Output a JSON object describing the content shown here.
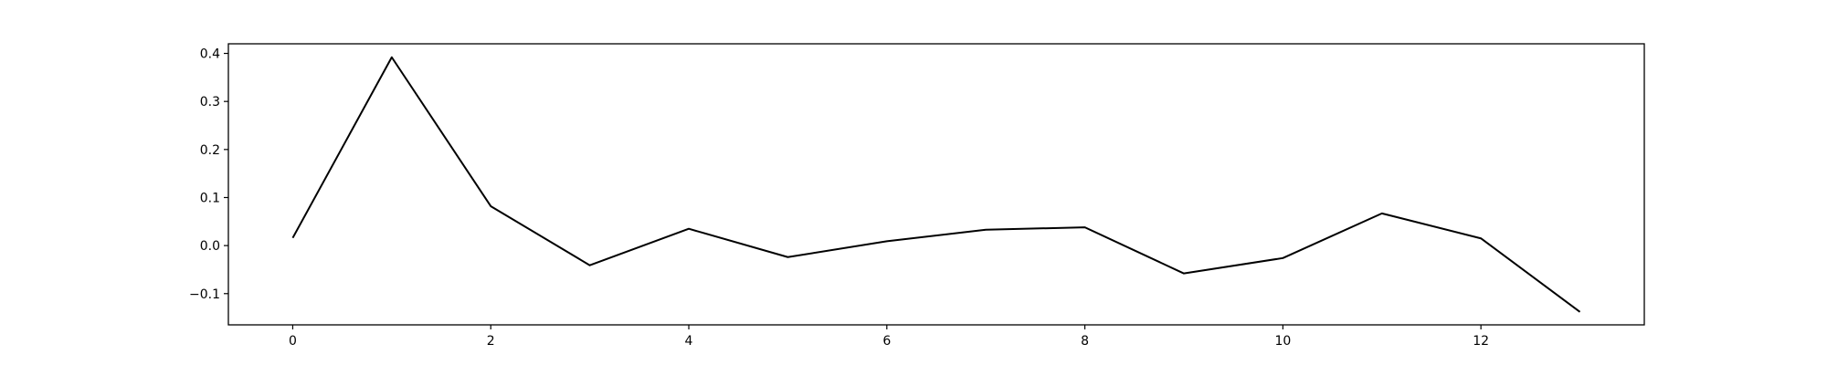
{
  "chart_data": {
    "type": "line",
    "title": "",
    "xlabel": "",
    "ylabel": "",
    "x": [
      0,
      1,
      2,
      3,
      4,
      5,
      6,
      7,
      8,
      9,
      10,
      11,
      12,
      13
    ],
    "series": [
      {
        "color": "#000000",
        "values": [
          0.016,
          0.392,
          0.082,
          -0.041,
          0.035,
          -0.024,
          0.009,
          0.033,
          0.038,
          -0.058,
          -0.026,
          0.067,
          0.015,
          -0.138
        ]
      }
    ],
    "xlim": [
      -0.65,
      13.65
    ],
    "ylim": [
      -0.165,
      0.42
    ],
    "x_ticks": [
      0,
      2,
      4,
      6,
      8,
      10,
      12
    ],
    "y_ticks": [
      -0.1,
      0.0,
      0.1,
      0.2,
      0.3,
      0.4
    ],
    "x_tick_labels": [
      "0",
      "2",
      "4",
      "6",
      "8",
      "10",
      "12"
    ],
    "y_tick_labels": [
      "−0.1",
      "0.0",
      "0.1",
      "0.2",
      "0.3",
      "0.4"
    ],
    "grid": false,
    "legend": "none"
  }
}
